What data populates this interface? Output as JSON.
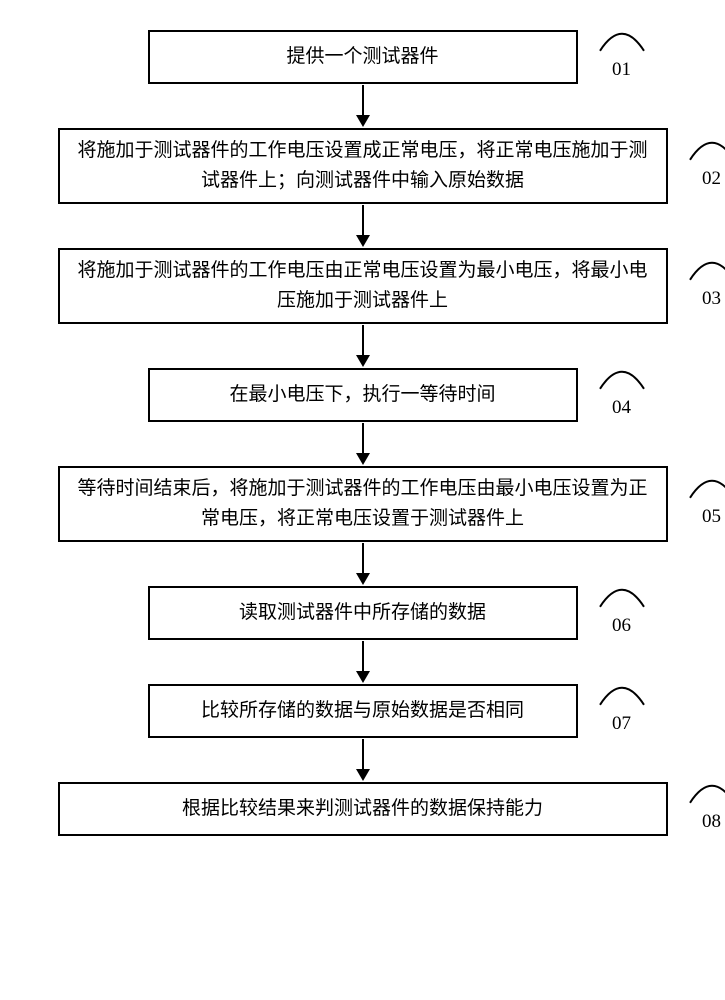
{
  "flowchart": {
    "steps": [
      {
        "num": "01",
        "text": "提供一个测试器件",
        "size": "narrow"
      },
      {
        "num": "02",
        "text": "将施加于测试器件的工作电压设置成正常电压，将正常电压施加于测\n试器件上；向测试器件中输入原始数据",
        "size": "wide"
      },
      {
        "num": "03",
        "text": "将施加于测试器件的工作电压由正常电压设置为最小电压，将最小电\n压施加于测试器件上",
        "size": "wide"
      },
      {
        "num": "04",
        "text": "在最小电压下，执行一等待时间",
        "size": "narrow"
      },
      {
        "num": "05",
        "text": "等待时间结束后，将施加于测试器件的工作电压由最小电压设置为正\n常电压，将正常电压设置于测试器件上",
        "size": "wide"
      },
      {
        "num": "06",
        "text": "读取测试器件中所存储的数据",
        "size": "narrow"
      },
      {
        "num": "07",
        "text": "比较所存储的数据与原始数据是否相同",
        "size": "narrow"
      },
      {
        "num": "08",
        "text": "根据比较结果来判测试器件的数据保持能力",
        "size": "wide-single"
      }
    ],
    "box_border_color": "#000000",
    "background_color": "#ffffff",
    "text_color": "#000000",
    "font_size": 19,
    "arrow_color": "#000000",
    "arc_stroke_width": 2
  }
}
